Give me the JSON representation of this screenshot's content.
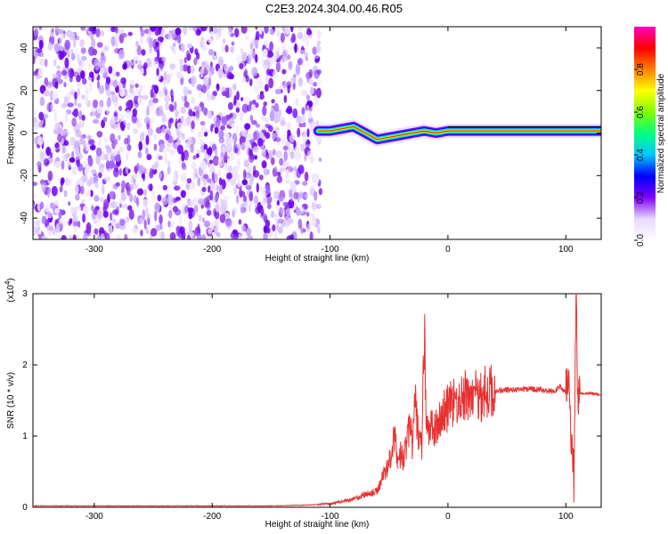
{
  "title": "C2E3.2024.304.00.46.R05",
  "spectrogram": {
    "type": "heatmap",
    "xlabel": "Height of straight line (km)",
    "ylabel": "Frequency (Hz)",
    "xlim": [
      -352,
      130
    ],
    "ylim": [
      -50,
      50
    ],
    "xticks": [
      "-300",
      "-200",
      "-100",
      "0",
      "100"
    ],
    "xtick_values": [
      -300,
      -200,
      -100,
      0,
      100
    ],
    "yticks": [
      "-40",
      "-20",
      "0",
      "20",
      "40"
    ],
    "ytick_values": [
      -40,
      -20,
      0,
      20,
      40
    ],
    "noise_region": [
      -352,
      -108
    ],
    "signal_trace": [
      {
        "x": -110,
        "y": 1
      },
      {
        "x": -100,
        "y": 1
      },
      {
        "x": -90,
        "y": 2
      },
      {
        "x": -80,
        "y": 3
      },
      {
        "x": -70,
        "y": 0
      },
      {
        "x": -60,
        "y": -3
      },
      {
        "x": -50,
        "y": -2
      },
      {
        "x": -40,
        "y": -1
      },
      {
        "x": -30,
        "y": 0
      },
      {
        "x": -20,
        "y": 1
      },
      {
        "x": -10,
        "y": 0
      },
      {
        "x": 0,
        "y": 1
      },
      {
        "x": 20,
        "y": 1
      },
      {
        "x": 40,
        "y": 1
      },
      {
        "x": 60,
        "y": 1
      },
      {
        "x": 80,
        "y": 1
      },
      {
        "x": 100,
        "y": 1
      },
      {
        "x": 110,
        "y": 1
      },
      {
        "x": 130,
        "y": 1
      }
    ]
  },
  "colorbar": {
    "label": "Normalized spectral amplitude",
    "ticks": [
      "0.0",
      "0.2",
      "0.4",
      "0.6",
      "0.8"
    ],
    "tick_values": [
      0.0,
      0.2,
      0.4,
      0.6,
      0.8
    ],
    "range": [
      0,
      1
    ],
    "colors": [
      "#ffffff",
      "#e8d8ff",
      "#8000ff",
      "#0000ff",
      "#00c8ff",
      "#00ff80",
      "#80ff00",
      "#ffff00",
      "#ff8000",
      "#ff0000",
      "#ff00c0"
    ]
  },
  "chart_data": {
    "type": "line",
    "xlabel": "Height of straight line (km)",
    "ylabel": "SNR (10 * v/v)",
    "y_multiplier": "(x10",
    "y_multiplier_exp": "4",
    "y_multiplier_close": ")",
    "xlim": [
      -352,
      130
    ],
    "ylim": [
      0,
      3
    ],
    "xticks": [
      "-300",
      "-200",
      "-100",
      "0",
      "100"
    ],
    "xtick_values": [
      -300,
      -200,
      -100,
      0,
      100
    ],
    "yticks": [
      "0",
      "1",
      "2",
      "3"
    ],
    "ytick_values": [
      0,
      1,
      2,
      3
    ],
    "color": "#e83030",
    "series": [
      {
        "x": [
          -352,
          -300,
          -250,
          -200,
          -150,
          -120,
          -100,
          -90,
          -80,
          -70,
          -60,
          -55,
          -50,
          -45,
          -42,
          -40,
          -38,
          -35,
          -32,
          -30,
          -28,
          -25,
          -22,
          -20,
          -18,
          -16,
          -14,
          -12,
          -10,
          -8,
          -5,
          -2,
          0,
          5,
          10,
          15,
          20,
          30,
          40,
          50,
          60,
          70,
          80,
          90,
          95,
          100,
          102,
          104,
          106,
          107,
          108,
          109,
          110,
          112,
          115,
          120,
          130
        ],
        "y": [
          0.02,
          0.02,
          0.02,
          0.02,
          0.02,
          0.03,
          0.05,
          0.08,
          0.12,
          0.18,
          0.22,
          0.45,
          0.62,
          1.0,
          0.55,
          0.78,
          0.68,
          0.9,
          1.2,
          0.8,
          1.5,
          1.0,
          0.85,
          2.5,
          1.1,
          1.0,
          1.2,
          1.05,
          1.1,
          1.25,
          1.3,
          1.35,
          1.4,
          1.45,
          1.5,
          1.55,
          1.55,
          1.6,
          1.63,
          1.65,
          1.65,
          1.66,
          1.65,
          1.62,
          1.7,
          1.6,
          1.9,
          1.2,
          0.6,
          0.3,
          2.2,
          3.0,
          1.65,
          1.6,
          1.6,
          1.6,
          1.58
        ]
      }
    ]
  }
}
